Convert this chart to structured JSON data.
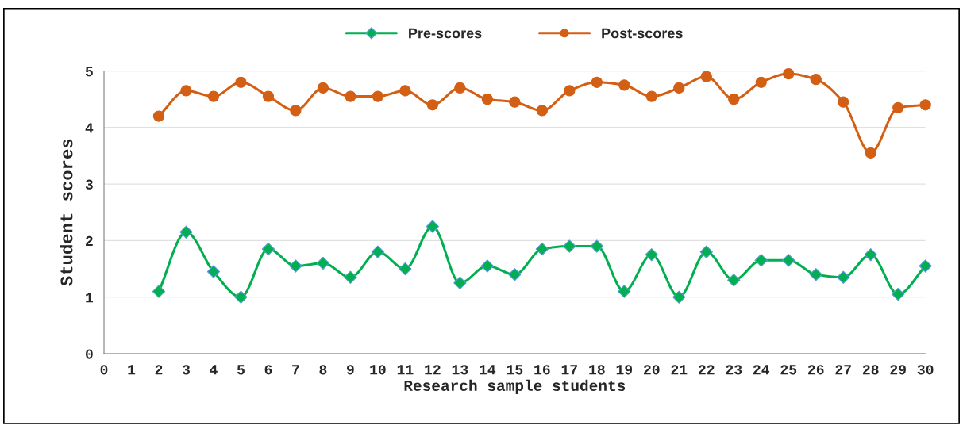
{
  "chart_data": {
    "type": "line",
    "xlabel": "Research sample students",
    "ylabel": "Student scores",
    "x": [
      2,
      3,
      4,
      5,
      6,
      7,
      8,
      9,
      10,
      11,
      12,
      13,
      14,
      15,
      16,
      17,
      18,
      19,
      20,
      21,
      22,
      23,
      24,
      25,
      26,
      27,
      28,
      29,
      30
    ],
    "series": [
      {
        "name": "Pre-scores",
        "color": "#00b050",
        "marker": "diamond",
        "values": [
          1.1,
          2.15,
          1.45,
          1.0,
          1.85,
          1.55,
          1.6,
          1.35,
          1.8,
          1.5,
          2.25,
          1.25,
          1.55,
          1.4,
          1.85,
          1.9,
          1.9,
          1.1,
          1.75,
          1.0,
          1.8,
          1.3,
          1.65,
          1.65,
          1.4,
          1.35,
          1.75,
          1.05,
          1.55
        ]
      },
      {
        "name": "Post-scores",
        "color": "#d35f14",
        "marker": "circle",
        "values": [
          4.2,
          4.65,
          4.55,
          4.8,
          4.55,
          4.3,
          4.7,
          4.55,
          4.55,
          4.65,
          4.4,
          4.7,
          4.5,
          4.45,
          4.3,
          4.65,
          4.8,
          4.75,
          4.55,
          4.7,
          4.9,
          4.5,
          4.8,
          4.95,
          4.85,
          4.45,
          3.55,
          4.35,
          4.4
        ]
      }
    ],
    "xlim": [
      0,
      30
    ],
    "xticks": [
      0,
      1,
      2,
      3,
      4,
      5,
      6,
      7,
      8,
      9,
      10,
      11,
      12,
      13,
      14,
      15,
      16,
      17,
      18,
      19,
      20,
      21,
      22,
      23,
      24,
      25,
      26,
      27,
      28,
      29,
      30
    ],
    "ylim": [
      0,
      5
    ],
    "yticks": [
      0,
      1,
      2,
      3,
      4,
      5
    ],
    "grid": "y",
    "legend": "top",
    "line_style": "solid"
  }
}
